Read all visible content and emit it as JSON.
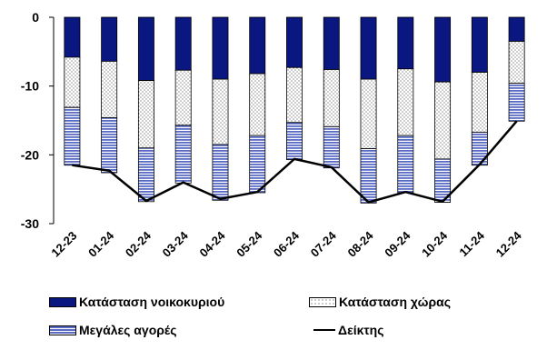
{
  "chart_data": {
    "type": "bar",
    "stacked": true,
    "title": "",
    "xlabel": "",
    "ylabel": "",
    "ylim": [
      -30,
      0
    ],
    "yticks": [
      0,
      -10,
      -20,
      -30
    ],
    "categories": [
      "12-23",
      "01-24",
      "02-24",
      "03-24",
      "04-24",
      "05-24",
      "06-24",
      "07-24",
      "08-24",
      "09-24",
      "10-24",
      "11-24",
      "12-24"
    ],
    "series": [
      {
        "name": "Κατάσταση νοικοκυριού",
        "kind": "bar",
        "fill": "navy",
        "values": [
          -5.8,
          -6.4,
          -9.2,
          -7.7,
          -9.0,
          -8.2,
          -7.3,
          -7.6,
          -9.0,
          -7.5,
          -9.4,
          -8.0,
          -3.5
        ]
      },
      {
        "name": "Κατάσταση χώρας",
        "kind": "bar",
        "fill": "dots",
        "values": [
          -7.3,
          -8.2,
          -9.8,
          -8.0,
          -9.5,
          -9.0,
          -8.0,
          -8.3,
          -10.1,
          -9.7,
          -11.2,
          -8.7,
          -6.1
        ]
      },
      {
        "name": "Μεγάλες αγορές",
        "kind": "bar",
        "fill": "stripes",
        "values": [
          -8.4,
          -8.0,
          -7.8,
          -8.4,
          -8.1,
          -8.3,
          -5.4,
          -6.0,
          -7.9,
          -8.3,
          -6.3,
          -4.8,
          -5.5
        ]
      },
      {
        "name": "Δείκτης",
        "kind": "line",
        "values": [
          -21.5,
          -22.3,
          -26.7,
          -24.0,
          -26.4,
          -25.4,
          -20.6,
          -21.8,
          -26.9,
          -25.4,
          -26.8,
          -21.4,
          -15.1
        ]
      }
    ],
    "legend_placement": "bottom",
    "grid": false
  },
  "colors": {
    "navy": "#0b1780",
    "stripe": "#5a6bc4",
    "dot": "#555555",
    "line": "#000000"
  }
}
